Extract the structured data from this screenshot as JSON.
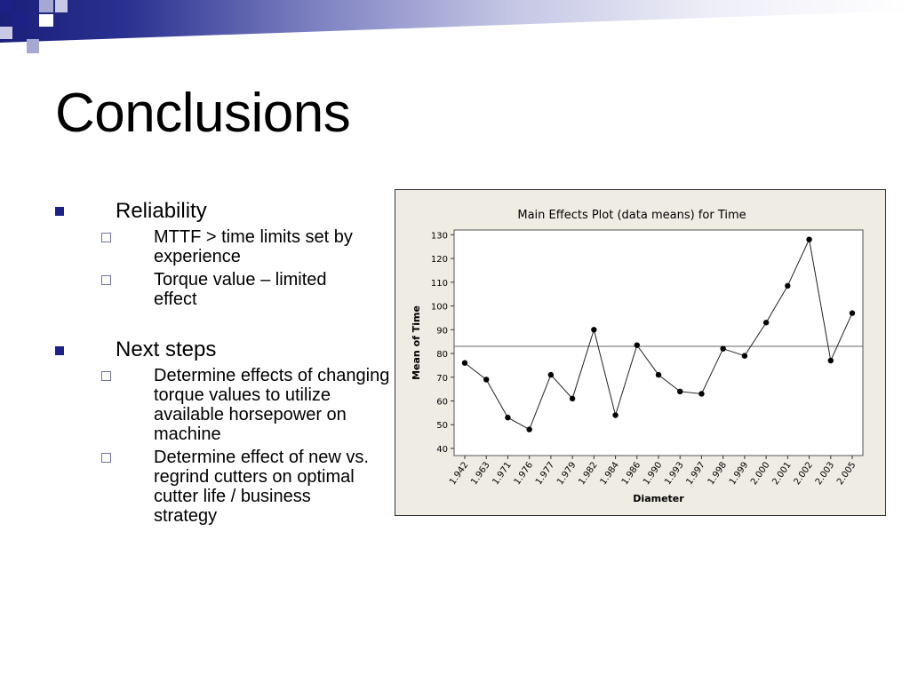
{
  "slide": {
    "title": "Conclusions",
    "accent_color": "#1d2085"
  },
  "bullets": [
    {
      "label": "Reliability",
      "sub": [
        "MTTF > time limits set by experience",
        "Torque value – limited effect"
      ]
    },
    {
      "label": "Next steps",
      "sub": [
        "Determine effects of changing torque values to utilize available horsepower on machine",
        "Determine effect of new vs. regrind cutters on optimal cutter life / business strategy"
      ]
    }
  ],
  "chart_data": {
    "type": "line",
    "title": "Main Effects Plot (data means) for Time",
    "xlabel": "Diameter",
    "ylabel": "Mean of Time",
    "categories": [
      "1.942",
      "1.963",
      "1.971",
      "1.976",
      "1.977",
      "1.979",
      "1.982",
      "1.984",
      "1.986",
      "1.990",
      "1.993",
      "1.997",
      "1.998",
      "1.999",
      "2.000",
      "2.001",
      "2.002",
      "2.003",
      "2.005"
    ],
    "values": [
      76,
      69,
      53,
      48,
      71,
      61,
      90,
      54,
      83.5,
      71,
      64,
      63,
      82,
      79,
      93,
      108.5,
      128,
      77,
      97
    ],
    "reference_line": 83,
    "ylim": [
      37,
      132
    ],
    "yticks": [
      40,
      50,
      60,
      70,
      80,
      90,
      100,
      110,
      120,
      130
    ],
    "grid": false,
    "background": "#efece3"
  }
}
